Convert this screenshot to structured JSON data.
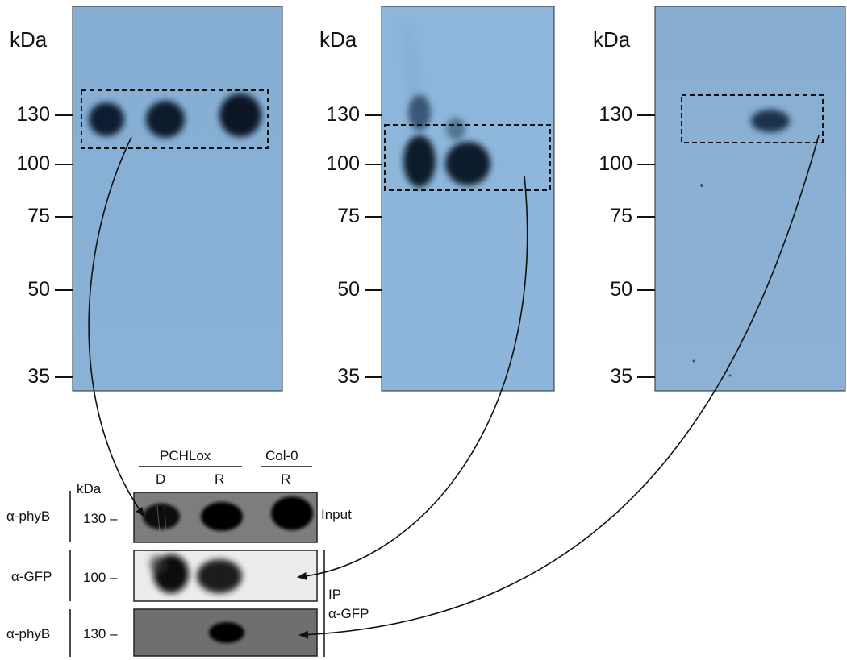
{
  "top_blots": [
    {
      "kda_label": "kDa",
      "markers": [
        "130",
        "100",
        "75",
        "50",
        "35"
      ]
    },
    {
      "kda_label": "kDa",
      "markers": [
        "130",
        "100",
        "75",
        "50",
        "35"
      ]
    },
    {
      "kda_label": "kDa",
      "markers": [
        "130",
        "100",
        "75",
        "50",
        "35"
      ]
    }
  ],
  "bottom": {
    "group_labels": [
      "PCHLox",
      "Col-0"
    ],
    "lane_labels": [
      "D",
      "R",
      "R"
    ],
    "kda_label": "kDa",
    "rows": [
      {
        "antibody": "α-phyB",
        "marker": "130 –"
      },
      {
        "antibody": "α-GFP",
        "marker": "100 –"
      },
      {
        "antibody": "α-phyB",
        "marker": "130 –"
      }
    ],
    "input_label": "Input",
    "ip_label": "IP",
    "ip_antibody": "α-GFP"
  },
  "colors": {
    "membrane": "#8fb4d6",
    "band": "#0a1a2e",
    "film_input": "#7f7f7f",
    "film_gfp": "#e6e6e6",
    "film_phyb": "#767676"
  }
}
